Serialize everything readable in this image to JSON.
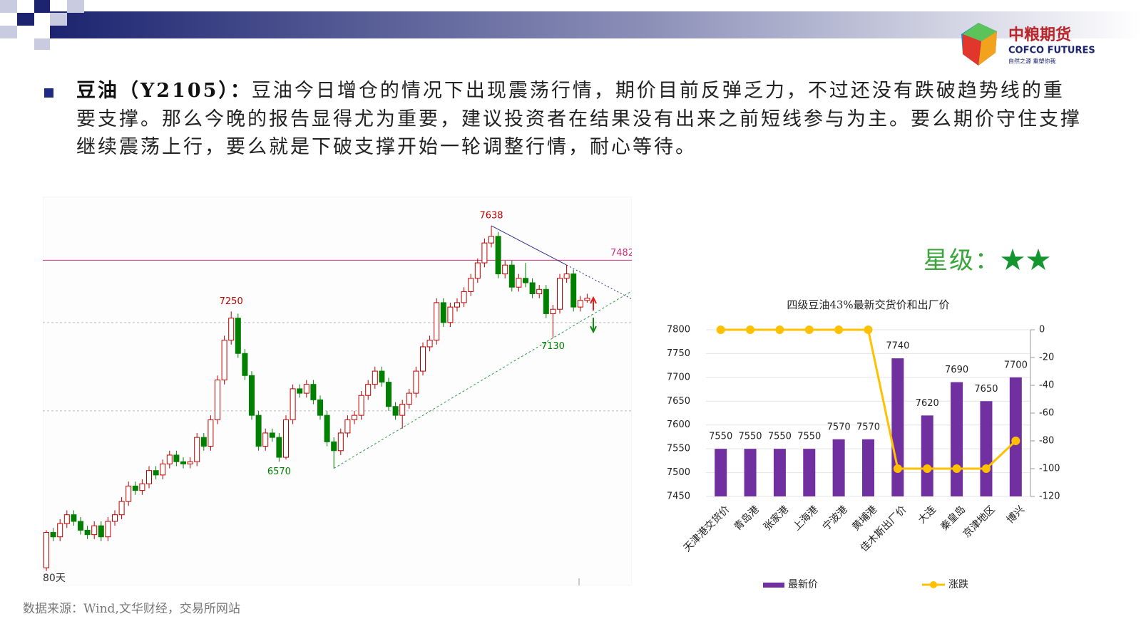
{
  "header": {
    "logo_name": "中粮期货",
    "logo_en": "COFCO FUTURES",
    "logo_slogan": "自然之源 重塑你我"
  },
  "body": {
    "lead": "豆油（Y2105）：",
    "text": "豆油今日增仓的情况下出现震荡行情，期价目前反弹乏力，不过还没有跌破趋势线的重要支撑。那么今晚的报告显得尤为重要，建议投资者在结果没有出来之前短线参与为主。要么期价守住支撑继续震荡上行，要么就是下破支撑开始一轮调整行情，耐心等待。"
  },
  "rating": {
    "label": "星级：",
    "stars": "★★"
  },
  "source": "数据来源：Wind,文华财经，交易所网站",
  "chart_data": [
    {
      "type": "candlestick",
      "period_label": "80天",
      "ylim": [
        6010,
        7770
      ],
      "up_color": "#c00000",
      "down_color": "#008000",
      "level": {
        "value": 7482,
        "color": "#d0307a"
      },
      "dashed_levels": [
        7200,
        6800
      ],
      "candles": [
        [
          6090,
          6260,
          6075,
          6250
        ],
        [
          6250,
          6270,
          6210,
          6230
        ],
        [
          6230,
          6310,
          6210,
          6290
        ],
        [
          6290,
          6350,
          6270,
          6330
        ],
        [
          6330,
          6350,
          6280,
          6300
        ],
        [
          6300,
          6320,
          6240,
          6260
        ],
        [
          6260,
          6280,
          6220,
          6240
        ],
        [
          6240,
          6300,
          6220,
          6280
        ],
        [
          6280,
          6300,
          6210,
          6230
        ],
        [
          6230,
          6320,
          6210,
          6300
        ],
        [
          6300,
          6350,
          6280,
          6330
        ],
        [
          6330,
          6410,
          6310,
          6390
        ],
        [
          6390,
          6480,
          6370,
          6460
        ],
        [
          6460,
          6480,
          6420,
          6440
        ],
        [
          6440,
          6490,
          6420,
          6470
        ],
        [
          6470,
          6550,
          6450,
          6530
        ],
        [
          6530,
          6550,
          6490,
          6510
        ],
        [
          6510,
          6580,
          6490,
          6560
        ],
        [
          6560,
          6620,
          6540,
          6600
        ],
        [
          6600,
          6620,
          6550,
          6570
        ],
        [
          6570,
          6590,
          6540,
          6560
        ],
        [
          6560,
          6590,
          6540,
          6570
        ],
        [
          6570,
          6700,
          6550,
          6680
        ],
        [
          6680,
          6700,
          6620,
          6640
        ],
        [
          6640,
          6780,
          6620,
          6760
        ],
        [
          6760,
          6960,
          6740,
          6940
        ],
        [
          6940,
          7140,
          6920,
          7120
        ],
        [
          7120,
          7250,
          7100,
          7220
        ],
        [
          7220,
          7240,
          7040,
          7060
        ],
        [
          7060,
          7080,
          6940,
          6960
        ],
        [
          6960,
          6980,
          6760,
          6780
        ],
        [
          6780,
          6800,
          6620,
          6640
        ],
        [
          6640,
          6720,
          6620,
          6700
        ],
        [
          6700,
          6720,
          6660,
          6680
        ],
        [
          6680,
          6700,
          6570,
          6590
        ],
        [
          6590,
          6780,
          6580,
          6760
        ],
        [
          6760,
          6920,
          6740,
          6900
        ],
        [
          6900,
          6920,
          6860,
          6880
        ],
        [
          6880,
          6940,
          6860,
          6920
        ],
        [
          6920,
          6940,
          6830,
          6850
        ],
        [
          6850,
          6870,
          6760,
          6780
        ],
        [
          6780,
          6800,
          6640,
          6660
        ],
        [
          6660,
          6680,
          6540,
          6620
        ],
        [
          6620,
          6720,
          6600,
          6700
        ],
        [
          6700,
          6780,
          6680,
          6760
        ],
        [
          6760,
          6800,
          6740,
          6780
        ],
        [
          6780,
          6890,
          6760,
          6870
        ],
        [
          6870,
          6940,
          6850,
          6920
        ],
        [
          6920,
          7000,
          6900,
          6980
        ],
        [
          6980,
          7000,
          6910,
          6930
        ],
        [
          6930,
          6950,
          6800,
          6820
        ],
        [
          6820,
          6840,
          6760,
          6780
        ],
        [
          6780,
          6850,
          6720,
          6830
        ],
        [
          6830,
          6900,
          6810,
          6880
        ],
        [
          6880,
          7000,
          6860,
          6980
        ],
        [
          6980,
          7110,
          6960,
          7090
        ],
        [
          7090,
          7140,
          7070,
          7120
        ],
        [
          7120,
          7310,
          7100,
          7290
        ],
        [
          7290,
          7310,
          7180,
          7200
        ],
        [
          7200,
          7290,
          7180,
          7270
        ],
        [
          7270,
          7310,
          7250,
          7290
        ],
        [
          7290,
          7360,
          7270,
          7340
        ],
        [
          7340,
          7420,
          7320,
          7400
        ],
        [
          7400,
          7490,
          7380,
          7470
        ],
        [
          7470,
          7580,
          7450,
          7560
        ],
        [
          7560,
          7638,
          7540,
          7590
        ],
        [
          7590,
          7610,
          7400,
          7420
        ],
        [
          7420,
          7480,
          7400,
          7460
        ],
        [
          7460,
          7480,
          7340,
          7360
        ],
        [
          7360,
          7420,
          7340,
          7400
        ],
        [
          7400,
          7470,
          7360,
          7380
        ],
        [
          7380,
          7400,
          7310,
          7330
        ],
        [
          7330,
          7370,
          7310,
          7350
        ],
        [
          7350,
          7370,
          7220,
          7240
        ],
        [
          7240,
          7280,
          7130,
          7260
        ],
        [
          7260,
          7420,
          7240,
          7400
        ],
        [
          7400,
          7460,
          7380,
          7420
        ],
        [
          7420,
          7440,
          7250,
          7270
        ],
        [
          7270,
          7320,
          7250,
          7300
        ],
        [
          7300,
          7330,
          7290,
          7310
        ]
      ]
    },
    {
      "type": "bar_line",
      "title": "四级豆油43%最新交货价和出厂价",
      "categories": [
        "天津港交货价",
        "青岛港",
        "张家港",
        "上海港",
        "宁波港",
        "黄埔港",
        "佳木斯出厂价",
        "大连",
        "秦皇岛",
        "京津地区",
        "博兴"
      ],
      "series": [
        {
          "name": "最新价",
          "color": "#7030a0",
          "values": [
            7550,
            7550,
            7550,
            7550,
            7570,
            7570,
            7740,
            7620,
            7690,
            7650,
            7700
          ]
        },
        {
          "name": "涨跌",
          "color": "#ffc000",
          "axis": "y2",
          "values": [
            0,
            0,
            0,
            0,
            0,
            0,
            -100,
            -100,
            -100,
            -100,
            -80
          ]
        }
      ],
      "ylim": [
        7450,
        7800
      ],
      "yticks": [
        7450,
        7500,
        7550,
        7600,
        7650,
        7700,
        7750,
        7800
      ],
      "y2lim": [
        -120,
        0
      ],
      "y2ticks": [
        0,
        -20,
        -40,
        -60,
        -80,
        -100,
        -120
      ],
      "legend": "bottom"
    }
  ]
}
